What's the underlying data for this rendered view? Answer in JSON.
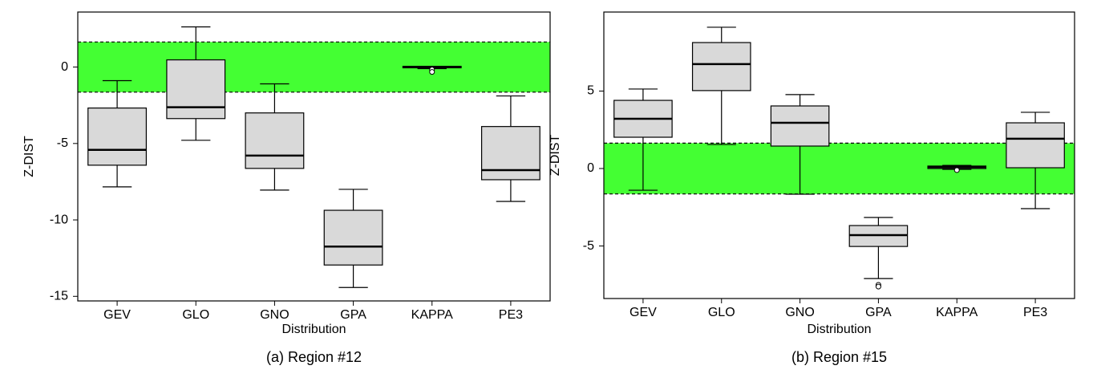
{
  "chart_data": [
    {
      "type": "box",
      "title": "(a) Region #12",
      "xlabel": "Distribution",
      "ylabel": "Z-DIST",
      "categories": [
        "GEV",
        "GLO",
        "GNO",
        "GPA",
        "KAPPA",
        "PE3"
      ],
      "ylim": [
        -15.3,
        3.6
      ],
      "yticks": [
        -15,
        -10,
        -5,
        0
      ],
      "band": [
        -1.64,
        1.64
      ],
      "band_color": "#44ff33",
      "color": "#d9d9d9",
      "boxes": [
        {
          "min": -7.84,
          "q1": -6.42,
          "median": -5.42,
          "q3": -2.68,
          "max": -0.89,
          "outliers": []
        },
        {
          "min": -4.79,
          "q1": -3.37,
          "median": -2.63,
          "q3": 0.47,
          "max": 2.63,
          "outliers": []
        },
        {
          "min": -8.05,
          "q1": -6.63,
          "median": -5.79,
          "q3": -3.0,
          "max": -1.1,
          "outliers": []
        },
        {
          "min": -14.42,
          "q1": -12.95,
          "median": -11.74,
          "q3": -9.37,
          "max": -8.0,
          "outliers": []
        },
        {
          "min": -0.1,
          "q1": -0.05,
          "median": 0,
          "q3": 0.05,
          "max": 0.05,
          "outliers": [
            -0.16,
            -0.32
          ]
        },
        {
          "min": -8.79,
          "q1": -7.37,
          "median": -6.74,
          "q3": -3.89,
          "max": -1.89,
          "outliers": []
        }
      ]
    },
    {
      "type": "box",
      "title": "(b) Region #15",
      "xlabel": "Distribution",
      "ylabel": "Z-DIST",
      "categories": [
        "GEV",
        "GLO",
        "GNO",
        "GPA",
        "KAPPA",
        "PE3"
      ],
      "ylim": [
        -8.39,
        10.1
      ],
      "yticks": [
        -5,
        0,
        5
      ],
      "band": [
        -1.64,
        1.64
      ],
      "band_color": "#44ff33",
      "color": "#d9d9d9",
      "boxes": [
        {
          "min": -1.4,
          "q1": 2.02,
          "median": 3.21,
          "q3": 4.4,
          "max": 5.13,
          "outliers": []
        },
        {
          "min": 1.55,
          "q1": 5.03,
          "median": 6.74,
          "q3": 8.13,
          "max": 9.12,
          "outliers": []
        },
        {
          "min": -1.66,
          "q1": 1.45,
          "median": 2.95,
          "q3": 4.04,
          "max": 4.77,
          "outliers": []
        },
        {
          "min": -7.1,
          "q1": -5.03,
          "median": -4.3,
          "q3": -3.68,
          "max": -3.16,
          "outliers": [
            -7.51,
            -7.62
          ]
        },
        {
          "min": -0.05,
          "q1": 0,
          "median": 0.1,
          "q3": 0.16,
          "max": 0.2,
          "outliers": [
            -0.1
          ]
        },
        {
          "min": -2.59,
          "q1": 0.05,
          "median": 1.92,
          "q3": 2.95,
          "max": 3.63,
          "outliers": []
        }
      ]
    }
  ]
}
